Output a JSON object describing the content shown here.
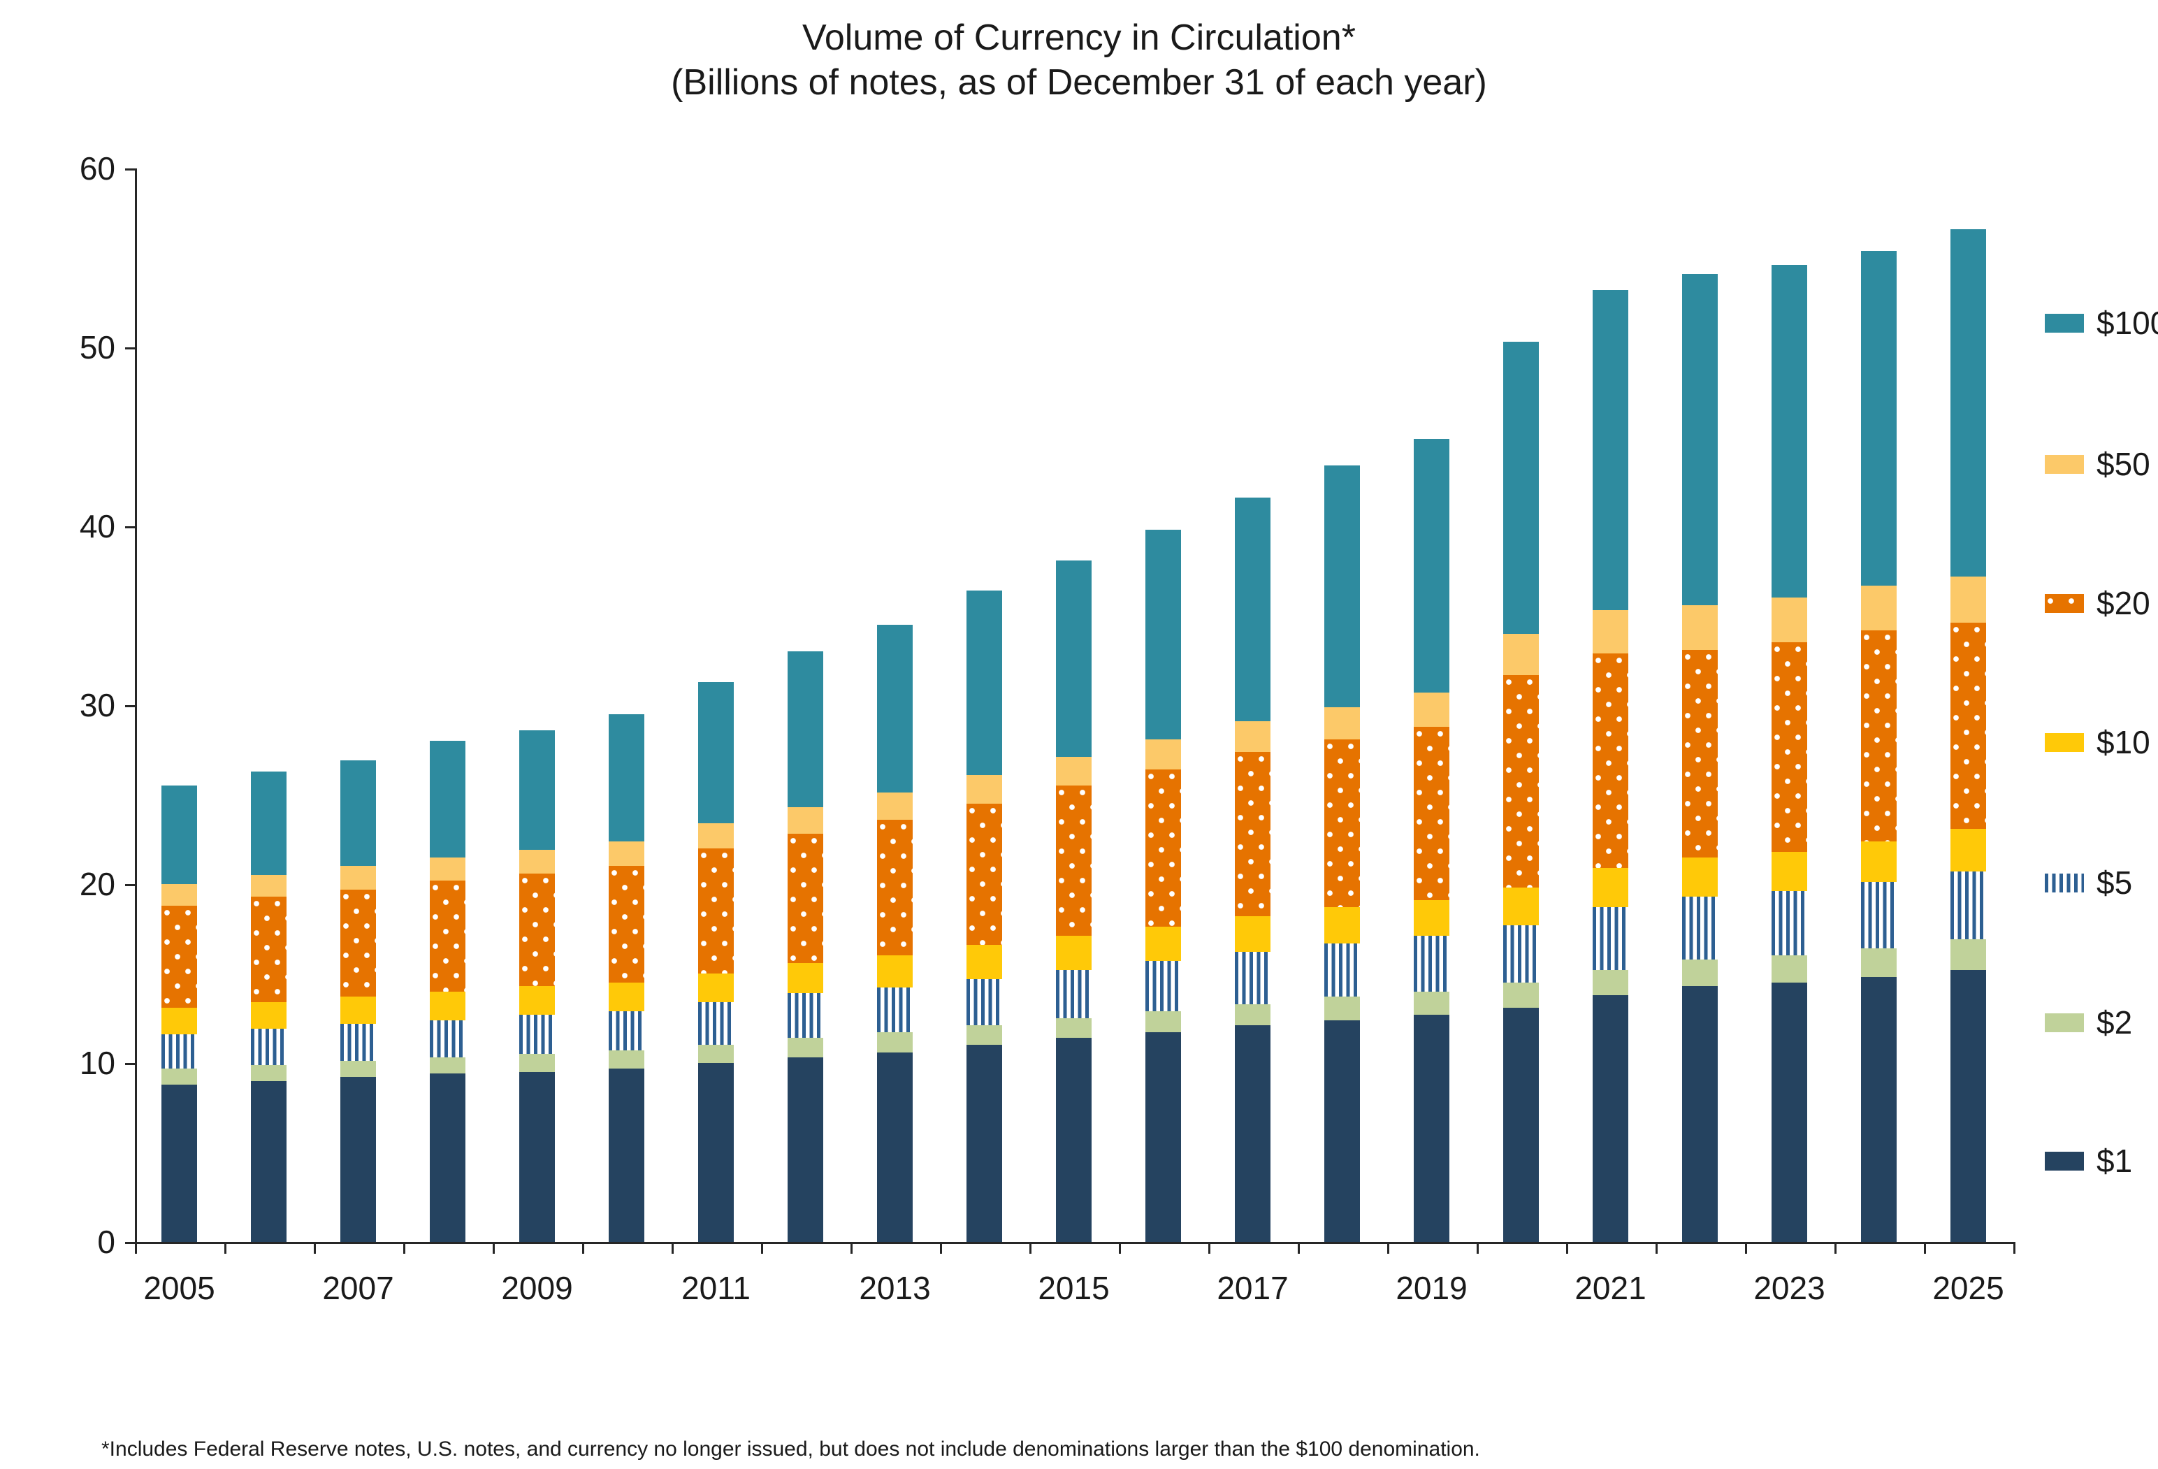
{
  "title": "Volume of Currency in Circulation*",
  "subtitle": "(Billions of notes, as of December 31 of each year)",
  "footnote": "*Includes Federal Reserve notes, U.S. notes, and currency no longer issued, but does not include denominations larger than the $100 denomination.",
  "colors": {
    "$1": "#254360",
    "$2": "#c0d29a",
    "$5_stripe": "#2d5f92",
    "$5_background": "#ffffff",
    "$10": "#ffc908",
    "$20": "#e67300",
    "$20_dots": "#ffffff",
    "$50": "#fcc969",
    "$100": "#2e8b9f",
    "axis": "#262626",
    "text": "#1a1a1a"
  },
  "chart_data": {
    "type": "bar",
    "stacked": true,
    "grid": false,
    "legend_position": "right",
    "unit": "billions of notes",
    "ylim": [
      0,
      60
    ],
    "yticks": [
      0,
      10,
      20,
      30,
      40,
      50,
      60
    ],
    "categories": [
      2005,
      2006,
      2007,
      2008,
      2009,
      2010,
      2011,
      2012,
      2013,
      2014,
      2015,
      2016,
      2017,
      2018,
      2019,
      2020,
      2021,
      2022,
      2023,
      2024,
      2025
    ],
    "x_tick_labels": [
      "2005",
      "2007",
      "2009",
      "2011",
      "2013",
      "2015",
      "2017",
      "2019",
      "2021",
      "2023",
      "2025"
    ],
    "series": [
      {
        "name": "$1",
        "pattern": "solid",
        "color": "#254360",
        "values": [
          8.8,
          9.0,
          9.2,
          9.4,
          9.5,
          9.7,
          10.0,
          10.3,
          10.6,
          11.0,
          11.4,
          11.7,
          12.1,
          12.4,
          12.7,
          13.1,
          13.8,
          14.3,
          14.5,
          14.8,
          15.2
        ]
      },
      {
        "name": "$2",
        "pattern": "solid",
        "color": "#c0d29a",
        "values": [
          0.9,
          0.9,
          0.9,
          0.9,
          1.0,
          1.0,
          1.0,
          1.1,
          1.1,
          1.1,
          1.1,
          1.2,
          1.2,
          1.3,
          1.3,
          1.4,
          1.4,
          1.5,
          1.5,
          1.6,
          1.7
        ]
      },
      {
        "name": "$5",
        "pattern": "vstripes",
        "color": "#2d5f92",
        "values": [
          1.9,
          2.0,
          2.1,
          2.1,
          2.2,
          2.2,
          2.4,
          2.5,
          2.5,
          2.6,
          2.7,
          2.8,
          2.9,
          3.0,
          3.1,
          3.2,
          3.5,
          3.5,
          3.6,
          3.7,
          3.8
        ]
      },
      {
        "name": "$10",
        "pattern": "solid",
        "color": "#ffc908",
        "values": [
          1.5,
          1.5,
          1.5,
          1.6,
          1.6,
          1.6,
          1.6,
          1.7,
          1.8,
          1.9,
          1.9,
          1.9,
          2.0,
          2.0,
          2.0,
          2.1,
          2.2,
          2.2,
          2.2,
          2.3,
          2.4
        ]
      },
      {
        "name": "$20",
        "pattern": "dots",
        "color": "#e67300",
        "values": [
          5.7,
          5.9,
          6.0,
          6.2,
          6.3,
          6.5,
          7.0,
          7.2,
          7.6,
          7.9,
          8.4,
          8.8,
          9.2,
          9.4,
          9.7,
          11.9,
          12.0,
          11.6,
          11.7,
          11.8,
          11.5
        ]
      },
      {
        "name": "$50",
        "pattern": "solid",
        "color": "#fcc969",
        "values": [
          1.2,
          1.2,
          1.3,
          1.3,
          1.3,
          1.4,
          1.4,
          1.5,
          1.5,
          1.6,
          1.6,
          1.7,
          1.7,
          1.8,
          1.9,
          2.3,
          2.4,
          2.5,
          2.5,
          2.5,
          2.6
        ]
      },
      {
        "name": "$100",
        "pattern": "solid",
        "color": "#2e8b9f",
        "values": [
          5.5,
          5.8,
          5.9,
          6.5,
          6.7,
          7.1,
          7.9,
          8.7,
          9.4,
          10.3,
          11.0,
          11.7,
          12.5,
          13.5,
          14.2,
          16.3,
          17.9,
          18.5,
          18.6,
          18.7,
          19.4
        ]
      }
    ],
    "totals": [
      25.5,
      26.3,
      26.9,
      28.0,
      28.6,
      29.5,
      31.3,
      33.0,
      34.5,
      36.4,
      38.1,
      39.8,
      41.6,
      43.4,
      44.9,
      50.3,
      53.2,
      54.1,
      54.6,
      55.4,
      56.6
    ],
    "legend_order_top_to_bottom": [
      "$100",
      "$50",
      "$20",
      "$10",
      "$5",
      "$2",
      "$1"
    ]
  }
}
